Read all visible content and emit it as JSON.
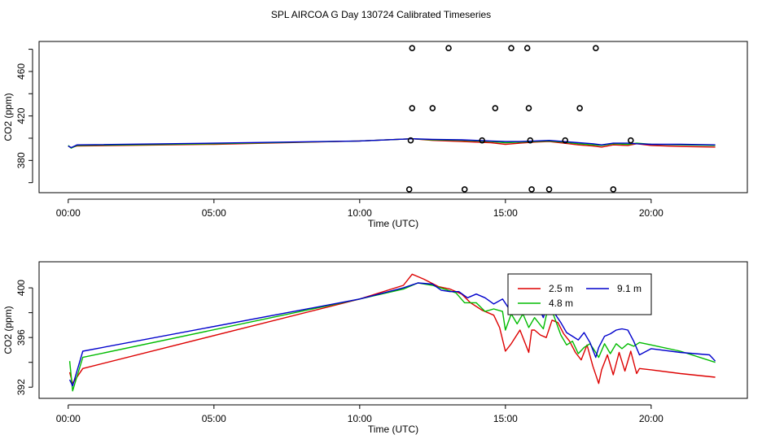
{
  "title": "SPL AIRCOA G  Day 130724  Calibrated Timeseries",
  "chart_data": [
    {
      "type": "line+scatter",
      "xlabel": "Time (UTC)",
      "ylabel": "CO2 (ppm)",
      "xlim": [
        -1.0,
        23.3
      ],
      "ylim": [
        351,
        487
      ],
      "xticks": [
        {
          "v": 0,
          "label": "00:00"
        },
        {
          "v": 5,
          "label": "05:00"
        },
        {
          "v": 10,
          "label": "10:00"
        },
        {
          "v": 15,
          "label": "15:00"
        },
        {
          "v": 20,
          "label": "20:00"
        }
      ],
      "yticks": [
        {
          "v": 380,
          "label": "380"
        },
        {
          "v": 420,
          "label": "420"
        },
        {
          "v": 460,
          "label": "460"
        }
      ],
      "yticks_minor": [
        360,
        400,
        440,
        480
      ],
      "series": [
        {
          "name": "2.5 m",
          "color": "#dd0000",
          "x": [
            0,
            0.1,
            0.3,
            5,
            10,
            11.8,
            12.5,
            13.5,
            14.5,
            15,
            15.5,
            16,
            16.5,
            17,
            17.5,
            18,
            18.3,
            18.7,
            19.2,
            19.5,
            20,
            21,
            22.2
          ],
          "y": [
            393,
            391.5,
            393,
            394.5,
            397.5,
            399.5,
            398,
            397,
            396,
            394.5,
            395.5,
            396.5,
            397,
            395.5,
            394,
            393,
            392,
            394,
            393.5,
            395,
            393.5,
            392.5,
            392
          ]
        },
        {
          "name": "4.8 m",
          "color": "#00bb00",
          "x": [
            0,
            0.1,
            0.3,
            5,
            10,
            11.8,
            12.5,
            13.5,
            14.5,
            15,
            15.5,
            16,
            16.5,
            17,
            17.5,
            18,
            18.3,
            18.7,
            19.2,
            19.5,
            20,
            21,
            22.2
          ],
          "y": [
            393.5,
            391,
            393.5,
            395,
            397.5,
            399.5,
            398.5,
            398,
            397,
            396,
            396.5,
            397,
            397.5,
            396.5,
            395,
            394,
            393.5,
            395,
            394.5,
            395.5,
            394.5,
            394,
            393.5
          ]
        },
        {
          "name": "9.1 m",
          "color": "#0000cc",
          "x": [
            0,
            0.1,
            0.3,
            5,
            10,
            11.8,
            12.5,
            13.5,
            14.5,
            15,
            15.5,
            16,
            16.5,
            17,
            17.5,
            18,
            18.3,
            18.7,
            19.2,
            19.5,
            20,
            21,
            22.2
          ],
          "y": [
            393,
            391.5,
            394,
            395.5,
            397.5,
            399.5,
            399,
            398.5,
            397.5,
            397,
            397,
            397.5,
            398,
            397,
            396,
            395,
            394,
            395.5,
            395.5,
            395,
            394.5,
            394.5,
            394
          ]
        }
      ],
      "points": [
        {
          "x": 11.8,
          "y": 481
        },
        {
          "x": 13.05,
          "y": 481
        },
        {
          "x": 15.2,
          "y": 481
        },
        {
          "x": 15.75,
          "y": 481
        },
        {
          "x": 18.1,
          "y": 481
        },
        {
          "x": 11.8,
          "y": 427
        },
        {
          "x": 12.5,
          "y": 427
        },
        {
          "x": 14.65,
          "y": 427
        },
        {
          "x": 15.8,
          "y": 427
        },
        {
          "x": 17.55,
          "y": 427
        },
        {
          "x": 11.75,
          "y": 398
        },
        {
          "x": 14.2,
          "y": 398
        },
        {
          "x": 15.85,
          "y": 398
        },
        {
          "x": 17.05,
          "y": 398
        },
        {
          "x": 19.3,
          "y": 398
        },
        {
          "x": 11.7,
          "y": 354
        },
        {
          "x": 13.6,
          "y": 354
        },
        {
          "x": 15.9,
          "y": 354
        },
        {
          "x": 16.5,
          "y": 354
        },
        {
          "x": 18.7,
          "y": 354
        }
      ]
    },
    {
      "type": "line",
      "xlabel": "Time (UTC)",
      "ylabel": "CO2 (ppm)",
      "xlim": [
        -1.0,
        23.3
      ],
      "ylim": [
        391.1,
        402.1
      ],
      "xticks": [
        {
          "v": 0,
          "label": "00:00"
        },
        {
          "v": 5,
          "label": "05:00"
        },
        {
          "v": 10,
          "label": "10:00"
        },
        {
          "v": 15,
          "label": "15:00"
        },
        {
          "v": 20,
          "label": "20:00"
        }
      ],
      "yticks": [
        {
          "v": 392,
          "label": "392"
        },
        {
          "v": 396,
          "label": "396"
        },
        {
          "v": 400,
          "label": "400"
        }
      ],
      "yticks_minor": [
        394,
        398
      ],
      "legend": {
        "position": "top-right",
        "entries": [
          {
            "name": "2.5 m",
            "color": "#dd0000"
          },
          {
            "name": "9.1 m",
            "color": "#0000cc"
          },
          {
            "name": "4.8 m",
            "color": "#00bb00"
          }
        ]
      },
      "series": [
        {
          "name": "2.5 m",
          "color": "#dd0000",
          "x": [
            0.05,
            0.15,
            0.5,
            10,
            11.5,
            11.8,
            12.2,
            12.7,
            13.1,
            13.5,
            13.8,
            14.2,
            14.6,
            14.8,
            15.0,
            15.2,
            15.5,
            15.8,
            15.9,
            16.0,
            16.2,
            16.4,
            16.6,
            16.8,
            17.0,
            17.2,
            17.4,
            17.6,
            17.8,
            18.0,
            18.2,
            18.3,
            18.5,
            18.7,
            18.9,
            19.1,
            19.3,
            19.5,
            19.6,
            20.0,
            21.0,
            22.2
          ],
          "y": [
            393.2,
            392.3,
            393.5,
            399.1,
            400.2,
            401.1,
            400.7,
            400.1,
            399.9,
            399.5,
            398.8,
            398.2,
            397.8,
            396.8,
            394.9,
            395.5,
            396.6,
            394.8,
            396.6,
            396.6,
            396.2,
            396.0,
            397.4,
            397.2,
            396.3,
            395.7,
            394.8,
            394.2,
            395.4,
            393.7,
            392.3,
            393.4,
            394.6,
            393.0,
            394.8,
            393.3,
            394.9,
            393.1,
            393.5,
            393.4,
            393.1,
            392.8
          ]
        },
        {
          "name": "4.8 m",
          "color": "#00bb00",
          "x": [
            0.05,
            0.15,
            0.5,
            10,
            11.5,
            12.0,
            12.5,
            12.9,
            13.3,
            13.6,
            14.0,
            14.3,
            14.6,
            14.9,
            15.0,
            15.2,
            15.4,
            15.6,
            15.8,
            16.0,
            16.3,
            16.5,
            16.7,
            16.9,
            17.1,
            17.3,
            17.5,
            17.7,
            17.9,
            18.1,
            18.2,
            18.4,
            18.6,
            18.8,
            19.0,
            19.2,
            19.4,
            19.6,
            20.0,
            21.0,
            22.2
          ],
          "y": [
            394.1,
            391.7,
            394.4,
            399.1,
            399.9,
            400.4,
            400.2,
            399.9,
            399.6,
            398.8,
            398.8,
            398.1,
            398.3,
            398.1,
            396.6,
            397.9,
            397.1,
            397.9,
            396.8,
            397.6,
            396.7,
            398.8,
            397.5,
            396.2,
            395.4,
            395.7,
            394.7,
            395.2,
            395.5,
            394.8,
            394.4,
            395.5,
            394.7,
            395.5,
            395.1,
            395.5,
            395.3,
            395.6,
            395.4,
            394.9,
            394.0
          ]
        },
        {
          "name": "9.1 m",
          "color": "#0000cc",
          "x": [
            0.05,
            0.15,
            0.5,
            10,
            11.5,
            12.0,
            12.5,
            12.8,
            13.1,
            13.4,
            13.7,
            14.0,
            14.3,
            14.6,
            14.9,
            15.1,
            15.3,
            15.5,
            15.7,
            15.9,
            16.1,
            16.3,
            16.5,
            16.7,
            16.9,
            17.1,
            17.3,
            17.5,
            17.7,
            17.9,
            18.1,
            18.2,
            18.4,
            18.6,
            18.8,
            19.0,
            19.2,
            19.4,
            19.6,
            20.0,
            21.0,
            22.0,
            22.2
          ],
          "y": [
            392.6,
            392.1,
            394.9,
            399.1,
            400.0,
            400.4,
            400.3,
            399.8,
            399.7,
            399.7,
            399.2,
            399.5,
            399.2,
            398.7,
            399.1,
            398.4,
            398.0,
            398.8,
            398.5,
            398.0,
            398.6,
            397.6,
            399.1,
            397.9,
            397.2,
            396.4,
            396.1,
            395.8,
            396.4,
            395.6,
            394.4,
            395.2,
            396.1,
            396.3,
            396.6,
            396.7,
            396.6,
            395.7,
            394.6,
            395.1,
            394.8,
            394.6,
            394.1
          ]
        }
      ]
    }
  ]
}
